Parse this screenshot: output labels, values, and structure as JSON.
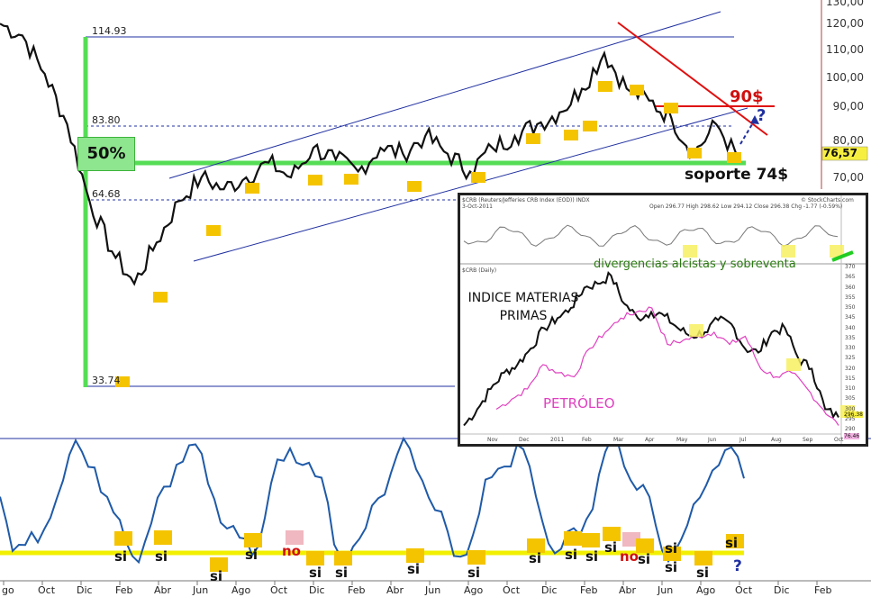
{
  "chart_data": [
    {
      "type": "line",
      "title": "",
      "price_axis": {
        "ticks": [
          "130,00",
          "120,00",
          "110,00",
          "100,00",
          "90,00",
          "80,00",
          "70,00"
        ],
        "current_badge": "76,57"
      },
      "x_ticks": [
        "go",
        "Oct",
        "Dic",
        "Feb",
        "Abr",
        "Jun",
        "Ago",
        "Oct",
        "Dic",
        "Feb",
        "Abr",
        "Jun",
        "Ago",
        "Oct",
        "Dic",
        "Feb",
        "Abr",
        "Jun",
        "Ago",
        "Oct",
        "Dic",
        "Feb"
      ],
      "fibonacci_levels": [
        "114.93",
        "83.80",
        "64.68",
        "33.74"
      ],
      "annotations": {
        "fifty_pct": "50%",
        "target": "90$",
        "question": "?",
        "support": "soporte 74$"
      },
      "series": [
        {
          "values": [
            122,
            118,
            105,
            88,
            62,
            45,
            34,
            48,
            62,
            70,
            66,
            70,
            75,
            70,
            80,
            76,
            72,
            80,
            78,
            84,
            78,
            72,
            80,
            84,
            88,
            92,
            100,
            112,
            100,
            96,
            90,
            78,
            88,
            76
          ]
        }
      ],
      "lower_panel_annotations": [
        "si",
        "si",
        "si",
        "si",
        "no",
        "si",
        "si",
        "si",
        "si",
        "si",
        "si",
        "si",
        "si",
        "si",
        "si",
        "no",
        "si",
        "si",
        "si",
        "?"
      ]
    },
    {
      "type": "line",
      "header": "$CRB (Reuters/Jefferies CRB Index (EOD)) INDX",
      "subheader": "3-Oct-2011",
      "quote": "Open 296.77  High 298.62  Low 294.12  Close 296.38  Chg -1.77 (-0.59%)",
      "source": "© StockCharts.com",
      "panel_label": "$CRB (Daily)",
      "title": "INDICE MATERIAS PRIMAS",
      "label_petroleo": "PETRÓLEO",
      "divergence_note": "divergencias alcistas y sobreventa",
      "y_ticks": [
        "370",
        "365",
        "360",
        "355",
        "350",
        "345",
        "340",
        "335",
        "330",
        "325",
        "320",
        "315",
        "310",
        "305",
        "300",
        "295",
        "290"
      ],
      "x_ticks": [
        "Nov",
        "Dec",
        "2011",
        "Feb",
        "Mar",
        "Apr",
        "May",
        "Jun",
        "Jul",
        "Aug",
        "Sep",
        "Oct"
      ],
      "last_value": "296.38",
      "oil_last": "76.46",
      "series": [
        {
          "color": "#111111",
          "values": [
            292,
            300,
            310,
            318,
            322,
            330,
            340,
            345,
            350,
            360,
            362,
            366,
            352,
            345,
            348,
            346,
            340,
            336,
            338,
            344,
            342,
            330,
            328,
            338,
            340,
            325,
            320,
            300,
            296
          ]
        },
        {
          "color": "#e040c0",
          "values": [
            300,
            305,
            310,
            322,
            318,
            316,
            330,
            338,
            345,
            348,
            350,
            332,
            334,
            336,
            338,
            332,
            336,
            320,
            316,
            318,
            310,
            300,
            292
          ]
        }
      ]
    }
  ],
  "colors": {
    "fibo_green": "#55dd55",
    "resistance_red": "#e01010",
    "channel_blue": "#2030a0",
    "oscillator_blue": "#1f5aa8",
    "zero_line_yellow": "#f2f000",
    "marker_gold": "#f5c400"
  }
}
